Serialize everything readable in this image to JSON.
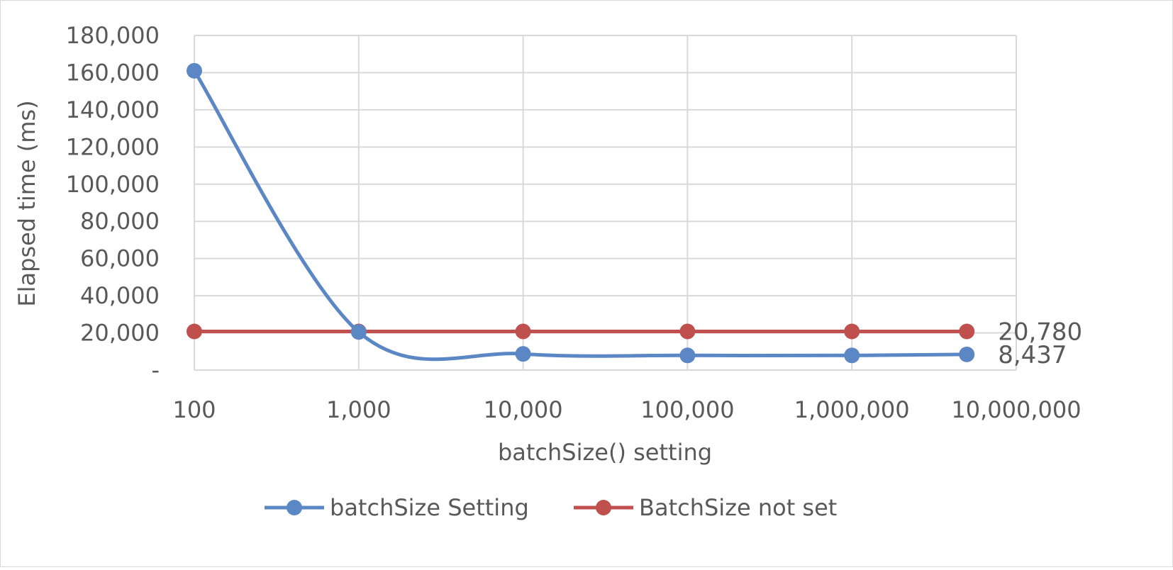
{
  "chart_data": {
    "type": "line",
    "title": "",
    "xlabel": "batchSize() setting",
    "ylabel": "Elapsed time (ms)",
    "x_scale": "log",
    "x": [
      100,
      1000,
      10000,
      100000,
      1000000,
      5000000
    ],
    "x_tick_labels": [
      "100",
      "1,000",
      "10,000",
      "100,000",
      "1,000,000",
      "10,000,000"
    ],
    "y_tick_labels": [
      "-",
      "20,000",
      "40,000",
      "60,000",
      "80,000",
      "100,000",
      "120,000",
      "140,000",
      "160,000",
      "180,000"
    ],
    "ylim": [
      0,
      180000
    ],
    "grid": true,
    "legend_position": "bottom",
    "series": [
      {
        "name": "batchSize Setting",
        "color": "#5b87c5",
        "values": [
          161000,
          20500,
          8700,
          7900,
          7900,
          8437
        ],
        "smooth": true,
        "end_label": "8,437"
      },
      {
        "name": "BatchSize not set",
        "color": "#c0504d",
        "values": [
          20780,
          20780,
          20780,
          20780,
          20780,
          20780
        ],
        "smooth": false,
        "end_label": "20,780"
      }
    ]
  }
}
